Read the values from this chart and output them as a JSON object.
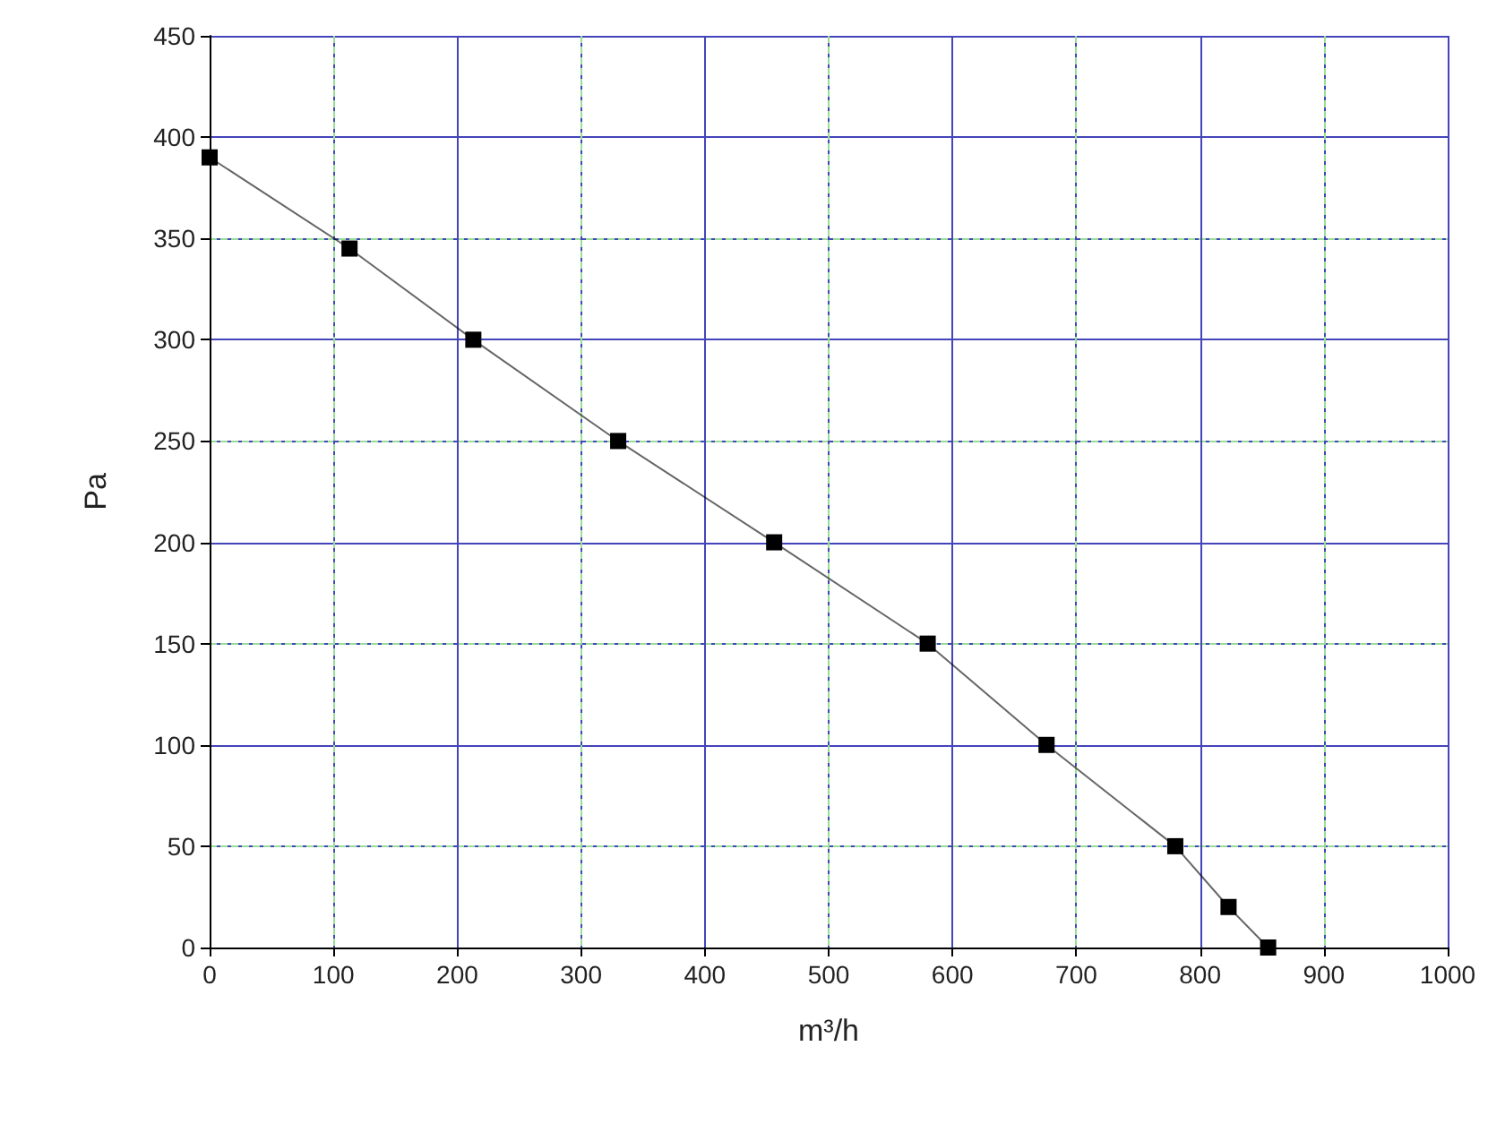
{
  "chart_data": {
    "type": "line",
    "xlabel": "m³/h",
    "ylabel": "Pa",
    "x": [
      0,
      113,
      213,
      330,
      456,
      580,
      676,
      780,
      823,
      855
    ],
    "series": [
      {
        "color": "#000000",
        "values": [
          390,
          345,
          300,
          250,
          200,
          150,
          100,
          50,
          20,
          0
        ]
      }
    ],
    "xlim": [
      0,
      1000
    ],
    "xticks": [
      0,
      100,
      200,
      300,
      400,
      500,
      600,
      700,
      800,
      900,
      1000
    ],
    "ylim": [
      0,
      450
    ],
    "yticks": [
      0,
      50,
      100,
      150,
      200,
      250,
      300,
      350,
      400,
      450
    ],
    "grid": true,
    "marker": "square",
    "line_style": "solid"
  }
}
